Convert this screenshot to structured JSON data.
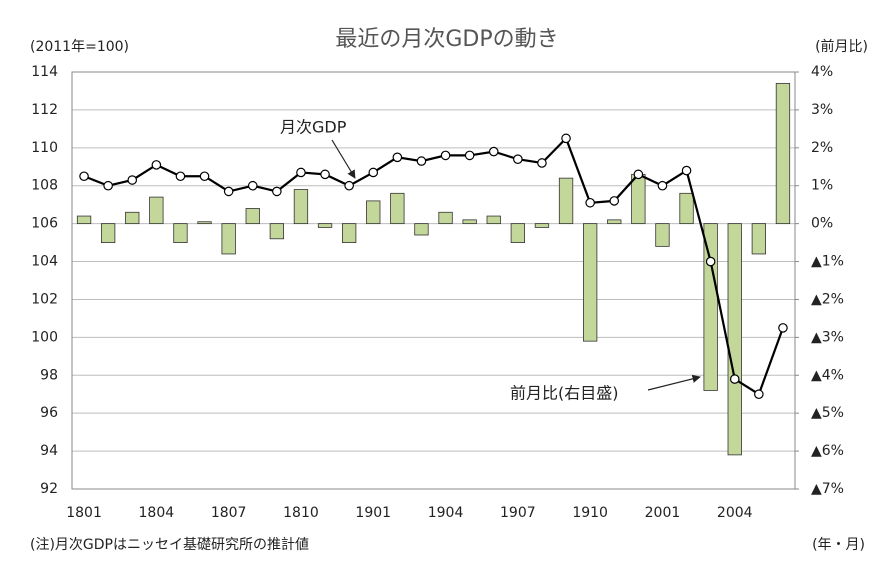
{
  "chart_data": {
    "type": "combo",
    "title": "最近の月次GDPの動き",
    "y_axis_label": "(2011年=100)",
    "y2_axis_label": "(前月比)",
    "x_axis_label": "(年・月)",
    "note": "(注)月次GDPはニッセイ基礎研究所の推計値",
    "categories": [
      "1801",
      null,
      null,
      "1804",
      null,
      null,
      "1807",
      null,
      null,
      "1810",
      null,
      null,
      "1901",
      null,
      null,
      "1904",
      null,
      null,
      "1907",
      null,
      null,
      "1910",
      null,
      null,
      "2001",
      null,
      null,
      "2004",
      null,
      null
    ],
    "ylim": [
      92,
      114
    ],
    "yticks": [
      92,
      94,
      96,
      98,
      100,
      102,
      104,
      106,
      108,
      110,
      112,
      114
    ],
    "y2lim": [
      -7,
      4
    ],
    "y2ticks": [
      {
        "value": 4,
        "label": "4%"
      },
      {
        "value": 3,
        "label": "3%"
      },
      {
        "value": 2,
        "label": "2%"
      },
      {
        "value": 1,
        "label": "1%"
      },
      {
        "value": 0,
        "label": "0%"
      },
      {
        "value": -1,
        "label": "▲1%"
      },
      {
        "value": -2,
        "label": "▲2%"
      },
      {
        "value": -3,
        "label": "▲3%"
      },
      {
        "value": -4,
        "label": "▲4%"
      },
      {
        "value": -5,
        "label": "▲5%"
      },
      {
        "value": -6,
        "label": "▲6%"
      },
      {
        "value": -7,
        "label": "▲7%"
      }
    ],
    "grid": true,
    "series": [
      {
        "name": "前月比(右目盛)",
        "type": "bar",
        "axis": "y2",
        "color": "#c4d79b",
        "values": [
          0.2,
          -0.5,
          0.3,
          0.7,
          -0.5,
          0.05,
          -0.8,
          0.4,
          -0.4,
          0.9,
          -0.1,
          -0.5,
          0.6,
          0.8,
          -0.3,
          0.3,
          0.1,
          0.2,
          -0.5,
          -0.1,
          1.2,
          -3.1,
          0.1,
          1.3,
          -0.6,
          0.8,
          -4.4,
          -6.1,
          -0.8,
          3.7
        ]
      },
      {
        "name": "月次GDP",
        "type": "line",
        "color": "#000000",
        "values": [
          108.5,
          108.0,
          108.3,
          109.1,
          108.5,
          108.5,
          107.7,
          108.0,
          107.7,
          108.7,
          108.6,
          108.0,
          108.7,
          109.5,
          109.3,
          109.6,
          109.6,
          109.8,
          109.4,
          109.2,
          110.5,
          107.1,
          107.2,
          108.6,
          108.0,
          108.8,
          104.0,
          97.8,
          97.0,
          100.5
        ]
      }
    ]
  }
}
